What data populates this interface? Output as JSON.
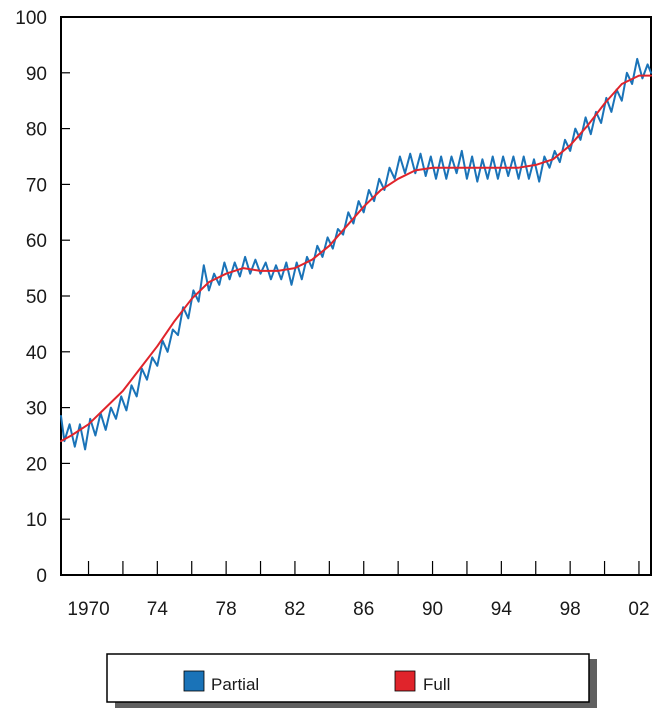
{
  "chart_data": {
    "type": "line",
    "title": "",
    "xlabel": "",
    "ylabel": "",
    "xlim": [
      1968.4,
      2002.7
    ],
    "ylim": [
      0,
      100
    ],
    "y_ticks": [
      0,
      10,
      20,
      30,
      40,
      50,
      60,
      70,
      80,
      90,
      100
    ],
    "x_ticks": [
      1970,
      1972,
      1974,
      1976,
      1978,
      1980,
      1982,
      1984,
      1986,
      1988,
      1990,
      1992,
      1994,
      1996,
      1998,
      2000,
      2002
    ],
    "x_tick_labels": [
      {
        "x": 1970,
        "label": "1970"
      },
      {
        "x": 1974,
        "label": "74"
      },
      {
        "x": 1978,
        "label": "78"
      },
      {
        "x": 1982,
        "label": "82"
      },
      {
        "x": 1986,
        "label": "86"
      },
      {
        "x": 1990,
        "label": "90"
      },
      {
        "x": 1994,
        "label": "94"
      },
      {
        "x": 1998,
        "label": "98"
      },
      {
        "x": 2002,
        "label": "02"
      }
    ],
    "grid": false,
    "legend_position": "bottom",
    "series": [
      {
        "name": "Partial",
        "color": "#1a73b8",
        "points": [
          [
            1968.4,
            28.5
          ],
          [
            1968.6,
            24
          ],
          [
            1968.9,
            27
          ],
          [
            1969.2,
            23
          ],
          [
            1969.5,
            27
          ],
          [
            1969.8,
            22.5
          ],
          [
            1970.1,
            28
          ],
          [
            1970.4,
            25
          ],
          [
            1970.7,
            29
          ],
          [
            1971.0,
            26
          ],
          [
            1971.3,
            30
          ],
          [
            1971.6,
            28
          ],
          [
            1971.9,
            32
          ],
          [
            1972.2,
            29.5
          ],
          [
            1972.5,
            34
          ],
          [
            1972.8,
            32
          ],
          [
            1973.1,
            37
          ],
          [
            1973.4,
            35
          ],
          [
            1973.7,
            39
          ],
          [
            1974.0,
            37.5
          ],
          [
            1974.3,
            42
          ],
          [
            1974.6,
            40
          ],
          [
            1974.9,
            44
          ],
          [
            1975.2,
            43
          ],
          [
            1975.5,
            48
          ],
          [
            1975.8,
            46
          ],
          [
            1976.1,
            51
          ],
          [
            1976.4,
            49
          ],
          [
            1976.7,
            55.5
          ],
          [
            1977.0,
            51
          ],
          [
            1977.3,
            54
          ],
          [
            1977.6,
            52
          ],
          [
            1977.9,
            56
          ],
          [
            1978.2,
            53
          ],
          [
            1978.5,
            56
          ],
          [
            1978.8,
            53.5
          ],
          [
            1979.1,
            57
          ],
          [
            1979.4,
            54
          ],
          [
            1979.7,
            56.5
          ],
          [
            1980.0,
            54
          ],
          [
            1980.3,
            56
          ],
          [
            1980.6,
            53
          ],
          [
            1980.9,
            55.5
          ],
          [
            1981.2,
            53
          ],
          [
            1981.5,
            56
          ],
          [
            1981.8,
            52
          ],
          [
            1982.1,
            56
          ],
          [
            1982.4,
            53
          ],
          [
            1982.7,
            57
          ],
          [
            1983.0,
            55
          ],
          [
            1983.3,
            59
          ],
          [
            1983.6,
            57
          ],
          [
            1983.9,
            60.5
          ],
          [
            1984.2,
            58.5
          ],
          [
            1984.5,
            62
          ],
          [
            1984.8,
            61
          ],
          [
            1985.1,
            65
          ],
          [
            1985.4,
            63
          ],
          [
            1985.7,
            67
          ],
          [
            1986.0,
            65
          ],
          [
            1986.3,
            69
          ],
          [
            1986.6,
            67
          ],
          [
            1986.9,
            71
          ],
          [
            1987.2,
            69
          ],
          [
            1987.5,
            73
          ],
          [
            1987.8,
            71
          ],
          [
            1988.1,
            75
          ],
          [
            1988.4,
            72
          ],
          [
            1988.7,
            75.5
          ],
          [
            1989.0,
            72
          ],
          [
            1989.3,
            75.5
          ],
          [
            1989.6,
            71.5
          ],
          [
            1989.9,
            75
          ],
          [
            1990.2,
            71
          ],
          [
            1990.5,
            75
          ],
          [
            1990.8,
            71
          ],
          [
            1991.1,
            75
          ],
          [
            1991.4,
            72
          ],
          [
            1991.7,
            76
          ],
          [
            1992.0,
            71
          ],
          [
            1992.3,
            75
          ],
          [
            1992.6,
            70.5
          ],
          [
            1992.9,
            74.5
          ],
          [
            1993.2,
            71
          ],
          [
            1993.5,
            75
          ],
          [
            1993.8,
            71
          ],
          [
            1994.1,
            75
          ],
          [
            1994.4,
            71.5
          ],
          [
            1994.7,
            75
          ],
          [
            1995.0,
            71
          ],
          [
            1995.3,
            75
          ],
          [
            1995.6,
            71
          ],
          [
            1995.9,
            74.5
          ],
          [
            1996.2,
            70.5
          ],
          [
            1996.5,
            75
          ],
          [
            1996.8,
            73
          ],
          [
            1997.1,
            76
          ],
          [
            1997.4,
            74
          ],
          [
            1997.7,
            78
          ],
          [
            1998.0,
            76
          ],
          [
            1998.3,
            80
          ],
          [
            1998.6,
            78
          ],
          [
            1998.9,
            82
          ],
          [
            1999.2,
            79
          ],
          [
            1999.5,
            83
          ],
          [
            1999.8,
            81
          ],
          [
            2000.1,
            85.5
          ],
          [
            2000.4,
            83
          ],
          [
            2000.7,
            87
          ],
          [
            2001.0,
            85
          ],
          [
            2001.3,
            90
          ],
          [
            2001.6,
            88
          ],
          [
            2001.9,
            92.5
          ],
          [
            2002.2,
            89
          ],
          [
            2002.5,
            91.5
          ],
          [
            2002.7,
            90
          ]
        ]
      },
      {
        "name": "Full",
        "color": "#e0242b",
        "points": [
          [
            1968.4,
            24
          ],
          [
            1969.0,
            25
          ],
          [
            1970.0,
            27
          ],
          [
            1971.0,
            30
          ],
          [
            1972.0,
            33
          ],
          [
            1973.0,
            37
          ],
          [
            1974.0,
            41
          ],
          [
            1975.0,
            45.5
          ],
          [
            1976.0,
            49.5
          ],
          [
            1977.0,
            52.5
          ],
          [
            1978.0,
            54
          ],
          [
            1979.0,
            55
          ],
          [
            1980.0,
            54.5
          ],
          [
            1981.0,
            54.5
          ],
          [
            1982.0,
            55
          ],
          [
            1983.0,
            56.5
          ],
          [
            1984.0,
            59
          ],
          [
            1985.0,
            62.5
          ],
          [
            1986.0,
            66
          ],
          [
            1987.0,
            69
          ],
          [
            1988.0,
            71
          ],
          [
            1989.0,
            72.5
          ],
          [
            1990.0,
            73
          ],
          [
            1991.0,
            73
          ],
          [
            1992.0,
            73
          ],
          [
            1993.0,
            73
          ],
          [
            1994.0,
            73
          ],
          [
            1995.0,
            73
          ],
          [
            1996.0,
            73.5
          ],
          [
            1997.0,
            74.5
          ],
          [
            1998.0,
            77
          ],
          [
            1999.0,
            80.5
          ],
          [
            2000.0,
            84.5
          ],
          [
            2001.0,
            88
          ],
          [
            2002.0,
            89.5
          ],
          [
            2002.7,
            89.5
          ]
        ]
      }
    ]
  },
  "legend": {
    "items": [
      {
        "label": "Partial",
        "color": "#1a73b8"
      },
      {
        "label": "Full",
        "color": "#e0242b"
      }
    ]
  }
}
